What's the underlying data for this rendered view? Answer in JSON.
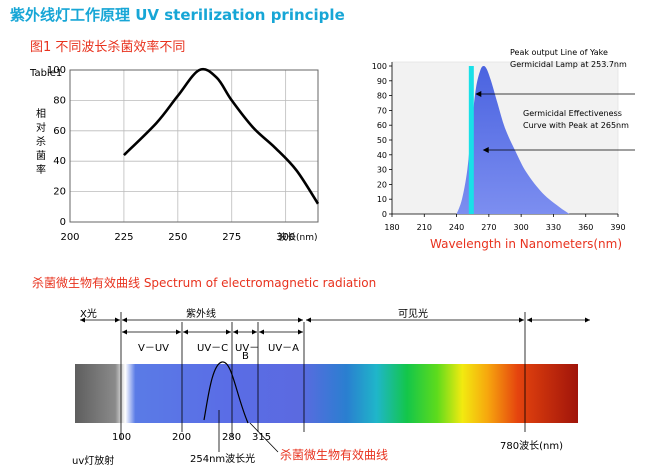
{
  "title": "紫外线灯工作原理 UV  sterilization principle",
  "fig1": {
    "label": "图1  不同波长杀菌效率不同",
    "table_label": "Table1",
    "ylabel_chars": [
      "相",
      "对",
      "杀",
      "菌",
      "率"
    ],
    "xlabel": "波长(nm)"
  },
  "fig2": {
    "annotation1_line1": "Peak output Line of Yake",
    "annotation1_line2": "Germicidal Lamp at 253.7nm",
    "annotation2_line1": "Germicidal Effectiveness",
    "annotation2_line2": "Curve with Peak at 265nm",
    "xlabel": "Wavelength in Nanometers(nm)"
  },
  "spectrum": {
    "heading": "杀菌微生物有效曲线  Spectrum of electromagnetic radiation",
    "region_xray": "X光",
    "region_uv": "紫外线",
    "region_visible": "可见光",
    "band_vuv": "V－UV",
    "band_uvc": "UV－C",
    "band_uvb_line1": "UV－",
    "band_uvb_line2": "B",
    "band_uva": "UV－A",
    "label_100": "100",
    "label_200": "200",
    "label_280": "280",
    "label_315": "315",
    "label_780": "780波长(nm)",
    "label_254": "254nm波长光",
    "label_uvlamp": "uv灯放射",
    "label_curve": "杀菌微生物有效曲线"
  },
  "chart_data": [
    {
      "type": "line",
      "x": [
        225,
        240,
        250,
        260,
        268,
        275,
        285,
        295,
        305,
        315
      ],
      "y": [
        44,
        65,
        83,
        100,
        95,
        80,
        62,
        49,
        34,
        12
      ],
      "xlim": [
        200,
        315
      ],
      "ylim": [
        0,
        100
      ],
      "xticks": [
        200,
        225,
        250,
        275,
        300
      ],
      "yticks": [
        0,
        20,
        40,
        60,
        80,
        100
      ],
      "grid": true
    },
    {
      "type": "area",
      "x": [
        240,
        245,
        250,
        254,
        258,
        262,
        265,
        268,
        272,
        278,
        285,
        295,
        305,
        320,
        335,
        345
      ],
      "y": [
        0,
        10,
        30,
        60,
        85,
        97,
        100,
        98,
        90,
        75,
        58,
        42,
        28,
        14,
        5,
        0
      ],
      "xlim": [
        180,
        390
      ],
      "ylim": [
        0,
        100
      ],
      "xticks": [
        180,
        210,
        240,
        270,
        300,
        330,
        360,
        390
      ],
      "yticks": [
        0,
        10,
        20,
        30,
        40,
        50,
        60,
        70,
        80,
        90,
        100
      ],
      "peak_line_x": 253.7,
      "grid": false
    }
  ],
  "colors": {
    "title": "#17a6d6",
    "red": "#e8321e",
    "uv_fill": "#5b6de6",
    "peak_line": "#19e0e8"
  }
}
